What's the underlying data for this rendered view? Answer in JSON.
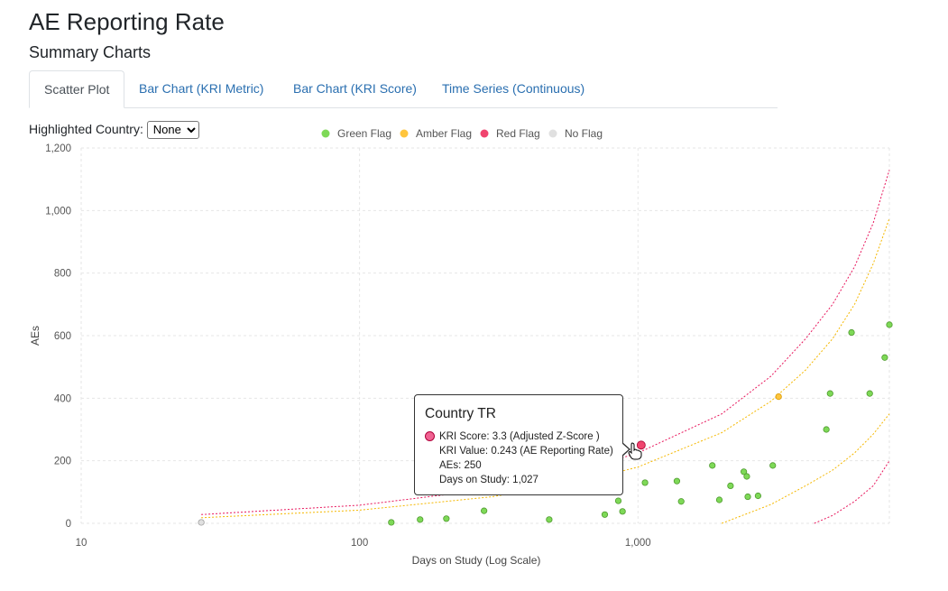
{
  "page": {
    "title": "AE Reporting Rate",
    "subtitle": "Summary Charts"
  },
  "tabs": [
    {
      "label": "Scatter Plot",
      "active": true
    },
    {
      "label": "Bar Chart (KRI Metric)",
      "active": false
    },
    {
      "label": "Bar Chart (KRI Score)",
      "active": false
    },
    {
      "label": "Time Series (Continuous)",
      "active": false
    }
  ],
  "highlight": {
    "label": "Highlighted Country:",
    "selected": "None"
  },
  "chart_data": {
    "type": "scatter",
    "xlabel": "Days on Study (Log Scale)",
    "ylabel": "AEs",
    "xscale": "log",
    "xlim": [
      10,
      8000
    ],
    "ylim": [
      0,
      1200
    ],
    "xticks": [
      10,
      100,
      1000
    ],
    "xtick_labels": [
      "10",
      "100",
      "1,000"
    ],
    "yticks": [
      0,
      200,
      400,
      600,
      800,
      1000,
      1200
    ],
    "ytick_labels": [
      "0",
      "200",
      "400",
      "600",
      "800",
      "1,000",
      "1,200"
    ],
    "grid": true,
    "legend_position": "top-center",
    "legend": [
      {
        "name": "Green Flag",
        "color": "#7ed957"
      },
      {
        "name": "Amber Flag",
        "color": "#ffc53d"
      },
      {
        "name": "Red Flag",
        "color": "#f0446e"
      },
      {
        "name": "No Flag",
        "color": "#e0e0e0"
      }
    ],
    "series": [
      {
        "name": "Green Flag",
        "color": "#7ed957",
        "stroke": "#4f9a2f",
        "points": [
          [
            130,
            3
          ],
          [
            165,
            12
          ],
          [
            205,
            15
          ],
          [
            280,
            40
          ],
          [
            480,
            12
          ],
          [
            760,
            28
          ],
          [
            850,
            72
          ],
          [
            880,
            38
          ],
          [
            1060,
            130
          ],
          [
            1380,
            135
          ],
          [
            1430,
            70
          ],
          [
            1850,
            185
          ],
          [
            1960,
            75
          ],
          [
            2150,
            120
          ],
          [
            2400,
            165
          ],
          [
            2460,
            150
          ],
          [
            2480,
            85
          ],
          [
            2700,
            88
          ],
          [
            3050,
            185
          ],
          [
            4750,
            300
          ],
          [
            4900,
            415
          ],
          [
            5850,
            610
          ],
          [
            6800,
            415
          ],
          [
            7700,
            530
          ],
          [
            8000,
            635
          ]
        ]
      },
      {
        "name": "Amber Flag",
        "color": "#ffc53d",
        "stroke": "#d99a00",
        "points": [
          [
            3200,
            405
          ]
        ]
      },
      {
        "name": "Red Flag",
        "color": "#f0446e",
        "stroke": "#a80030",
        "points": [
          [
            1027,
            250
          ]
        ]
      },
      {
        "name": "No Flag",
        "color": "#e0e0e0",
        "stroke": "#9e9e9e",
        "points": [
          [
            27,
            3
          ],
          [
            620,
            110
          ]
        ]
      }
    ],
    "thresholds": [
      {
        "color": "#e8175d",
        "points": [
          [
            27,
            28
          ],
          [
            100,
            58
          ],
          [
            300,
            110
          ],
          [
            600,
            165
          ],
          [
            1000,
            225
          ],
          [
            2000,
            350
          ],
          [
            3000,
            470
          ],
          [
            4000,
            590
          ],
          [
            5000,
            700
          ],
          [
            6000,
            820
          ],
          [
            7000,
            960
          ],
          [
            8000,
            1130
          ]
        ]
      },
      {
        "color": "#f5b800",
        "points": [
          [
            27,
            18
          ],
          [
            100,
            42
          ],
          [
            300,
            85
          ],
          [
            600,
            130
          ],
          [
            1000,
            180
          ],
          [
            2000,
            290
          ],
          [
            3000,
            390
          ],
          [
            4000,
            490
          ],
          [
            5000,
            590
          ],
          [
            6000,
            700
          ],
          [
            7000,
            830
          ],
          [
            8000,
            975
          ]
        ]
      },
      {
        "color": "#f5b800",
        "points": [
          [
            2000,
            0
          ],
          [
            3000,
            60
          ],
          [
            4000,
            120
          ],
          [
            5000,
            170
          ],
          [
            6000,
            225
          ],
          [
            7000,
            285
          ],
          [
            8000,
            350
          ]
        ]
      },
      {
        "color": "#e8175d",
        "points": [
          [
            4300,
            0
          ],
          [
            5000,
            25
          ],
          [
            6000,
            70
          ],
          [
            7000,
            120
          ],
          [
            8000,
            200
          ]
        ]
      }
    ]
  },
  "tooltip": {
    "title": "Country TR",
    "score": "KRI Score: 3.3 (Adjusted Z-Score )",
    "value": "KRI Value: 0.243 (AE Reporting Rate)",
    "aes": "AEs: 250",
    "days": "Days on Study: 1,027",
    "swatch_color": "#f06292"
  }
}
